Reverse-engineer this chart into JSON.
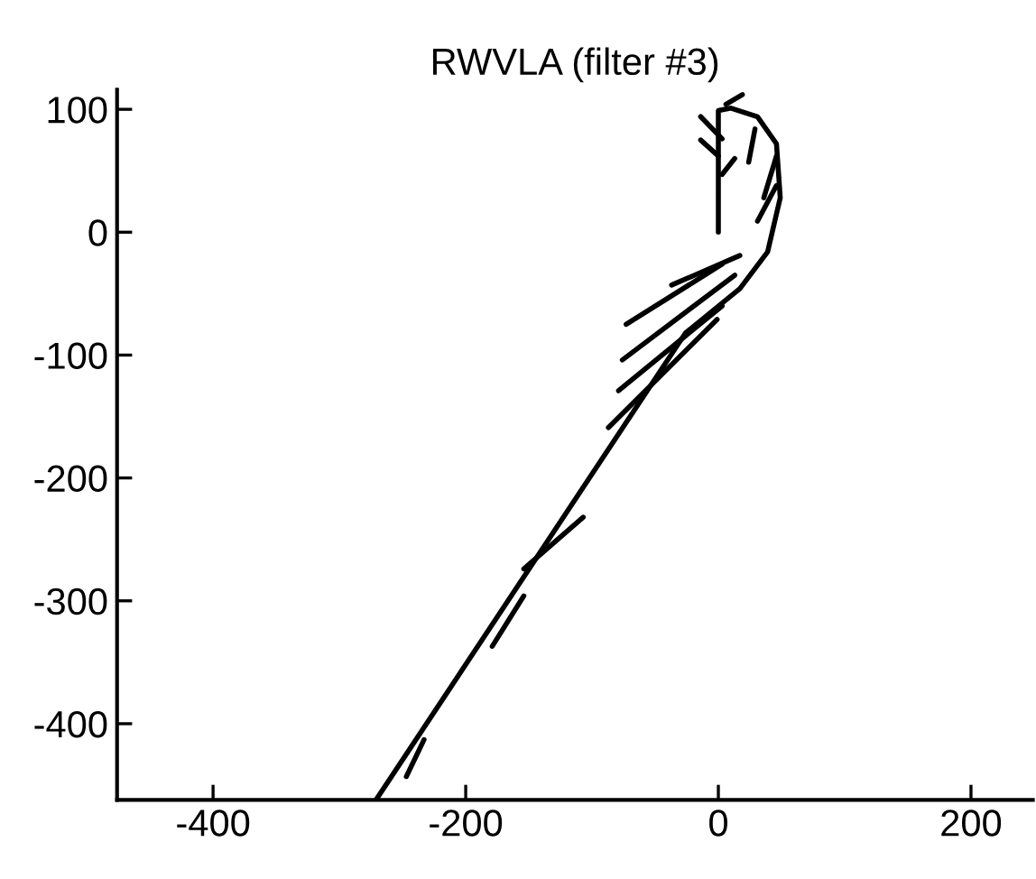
{
  "chart_data": {
    "type": "line",
    "title": "RWVLA (filter #3)",
    "xlim": [
      -476,
      249
    ],
    "ylim": [
      -462,
      116
    ],
    "xticks": [
      -400,
      -200,
      0,
      200
    ],
    "yticks": [
      100,
      0,
      -100,
      -200,
      -300,
      -400
    ],
    "grid": false,
    "legend": false,
    "marker": "none",
    "line_style": "solid",
    "series": [
      {
        "color": "#000000",
        "x": [
          -271,
          -26,
          17,
          39,
          49,
          46,
          31,
          10,
          0,
          0
        ],
        "values": [
          -462,
          -82,
          -46,
          -16,
          28,
          72,
          94,
          101,
          99,
          0
        ]
      },
      {
        "color": "#000000",
        "x": [
          -37,
          17
        ],
        "values": [
          -43,
          -19
        ]
      },
      {
        "color": "#000000",
        "x": [
          -73,
          3
        ],
        "values": [
          -75,
          -26
        ]
      },
      {
        "color": "#000000",
        "x": [
          -76,
          13
        ],
        "values": [
          -104,
          -35
        ]
      },
      {
        "color": "#000000",
        "x": [
          -79,
          3
        ],
        "values": [
          -129,
          -60
        ]
      },
      {
        "color": "#000000",
        "x": [
          -87,
          -1
        ],
        "values": [
          -159,
          -71
        ]
      },
      {
        "color": "#000000",
        "x": [
          -154,
          -107
        ],
        "values": [
          -274,
          -232
        ]
      },
      {
        "color": "#000000",
        "x": [
          -179,
          -154
        ],
        "values": [
          -337,
          -296
        ]
      },
      {
        "color": "#000000",
        "x": [
          -247,
          -233
        ],
        "values": [
          -443,
          -413
        ]
      },
      {
        "color": "#000000",
        "x": [
          -14,
          3
        ],
        "values": [
          94,
          76
        ]
      },
      {
        "color": "#000000",
        "x": [
          -14,
          0
        ],
        "values": [
          75,
          62
        ]
      },
      {
        "color": "#000000",
        "x": [
          3,
          13
        ],
        "values": [
          47,
          60
        ]
      },
      {
        "color": "#000000",
        "x": [
          6,
          19
        ],
        "values": [
          104,
          112
        ]
      },
      {
        "color": "#000000",
        "x": [
          24,
          29
        ],
        "values": [
          57,
          84
        ]
      },
      {
        "color": "#000000",
        "x": [
          36,
          46
        ],
        "values": [
          28,
          62
        ]
      },
      {
        "color": "#000000",
        "x": [
          31,
          46
        ],
        "values": [
          9,
          38
        ]
      }
    ]
  }
}
